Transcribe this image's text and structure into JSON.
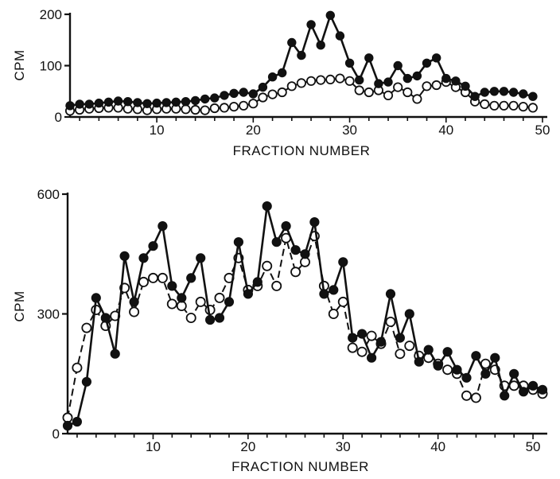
{
  "colors": {
    "ink": "#111111",
    "hollow": "#ffffff",
    "background": "#ffffff"
  },
  "chart_data": [
    {
      "type": "line",
      "xlabel": "FRACTION NUMBER",
      "ylabel": "CPM",
      "xlim": [
        1,
        50
      ],
      "ylim": [
        0,
        200
      ],
      "xticks": [
        10,
        20,
        30,
        40,
        50
      ],
      "yticks": [
        0,
        100,
        200
      ],
      "grid": false,
      "legend": "none",
      "series": [
        {
          "marker": "filled-circle",
          "line": "solid",
          "x": [
            1,
            2,
            3,
            4,
            5,
            6,
            7,
            8,
            9,
            10,
            11,
            12,
            13,
            14,
            15,
            16,
            17,
            18,
            19,
            20,
            21,
            22,
            23,
            24,
            25,
            26,
            27,
            28,
            29,
            30,
            31,
            32,
            33,
            34,
            35,
            36,
            37,
            38,
            39,
            40,
            41,
            42,
            43,
            44,
            45,
            46,
            47,
            48,
            49
          ],
          "y": [
            22,
            25,
            25,
            27,
            29,
            31,
            30,
            28,
            26,
            27,
            28,
            29,
            30,
            32,
            35,
            37,
            42,
            46,
            48,
            45,
            58,
            78,
            86,
            145,
            120,
            180,
            140,
            198,
            158,
            105,
            72,
            115,
            65,
            68,
            100,
            75,
            80,
            105,
            115,
            75,
            70,
            60,
            40,
            48,
            50,
            50,
            48,
            45,
            40
          ]
        },
        {
          "marker": "open-circle",
          "line": "solid",
          "x": [
            1,
            2,
            3,
            4,
            5,
            6,
            7,
            8,
            9,
            10,
            11,
            12,
            13,
            14,
            15,
            16,
            17,
            18,
            19,
            20,
            21,
            22,
            23,
            24,
            25,
            26,
            27,
            28,
            29,
            30,
            31,
            32,
            33,
            34,
            35,
            36,
            37,
            38,
            39,
            40,
            41,
            42,
            43,
            44,
            45,
            46,
            47,
            48,
            49
          ],
          "y": [
            12,
            14,
            16,
            17,
            18,
            18,
            16,
            15,
            13,
            15,
            16,
            16,
            15,
            14,
            13,
            17,
            18,
            20,
            22,
            26,
            38,
            44,
            48,
            60,
            66,
            70,
            72,
            73,
            75,
            70,
            52,
            48,
            52,
            42,
            58,
            48,
            35,
            60,
            62,
            68,
            58,
            48,
            30,
            25,
            22,
            22,
            22,
            20,
            18
          ]
        }
      ]
    },
    {
      "type": "line",
      "xlabel": "FRACTION NUMBER",
      "ylabel": "CPM",
      "xlim": [
        1,
        51
      ],
      "ylim": [
        0,
        600
      ],
      "xticks": [
        10,
        20,
        30,
        40,
        50
      ],
      "yticks": [
        0,
        300,
        600
      ],
      "grid": false,
      "legend": "none",
      "series": [
        {
          "marker": "filled-circle",
          "line": "solid",
          "x": [
            1,
            2,
            3,
            4,
            5,
            6,
            7,
            8,
            9,
            10,
            11,
            12,
            13,
            14,
            15,
            16,
            17,
            18,
            19,
            20,
            21,
            22,
            23,
            24,
            25,
            26,
            27,
            28,
            29,
            30,
            31,
            32,
            33,
            34,
            35,
            36,
            37,
            38,
            39,
            40,
            41,
            42,
            43,
            44,
            45,
            46,
            47,
            48,
            49,
            50,
            51
          ],
          "y": [
            20,
            30,
            130,
            340,
            290,
            200,
            445,
            330,
            440,
            470,
            520,
            370,
            340,
            390,
            440,
            285,
            290,
            330,
            480,
            350,
            380,
            570,
            480,
            520,
            460,
            450,
            530,
            350,
            360,
            430,
            240,
            250,
            190,
            230,
            350,
            240,
            300,
            180,
            210,
            170,
            205,
            160,
            140,
            195,
            150,
            190,
            95,
            150,
            105,
            120,
            110
          ]
        },
        {
          "marker": "open-circle",
          "line": "dashed",
          "x": [
            1,
            2,
            3,
            4,
            5,
            6,
            7,
            8,
            9,
            10,
            11,
            12,
            13,
            14,
            15,
            16,
            17,
            18,
            19,
            20,
            21,
            22,
            23,
            24,
            25,
            26,
            27,
            28,
            29,
            30,
            31,
            32,
            33,
            34,
            35,
            36,
            37,
            38,
            39,
            40,
            41,
            42,
            43,
            44,
            45,
            46,
            47,
            48,
            49,
            50,
            51
          ],
          "y": [
            40,
            165,
            265,
            310,
            270,
            295,
            365,
            305,
            380,
            390,
            390,
            325,
            320,
            290,
            330,
            310,
            340,
            390,
            440,
            360,
            370,
            420,
            370,
            490,
            405,
            430,
            495,
            370,
            300,
            330,
            215,
            205,
            245,
            225,
            280,
            200,
            220,
            195,
            190,
            175,
            160,
            150,
            95,
            90,
            175,
            160,
            120,
            120,
            120,
            110,
            100
          ]
        }
      ]
    }
  ]
}
